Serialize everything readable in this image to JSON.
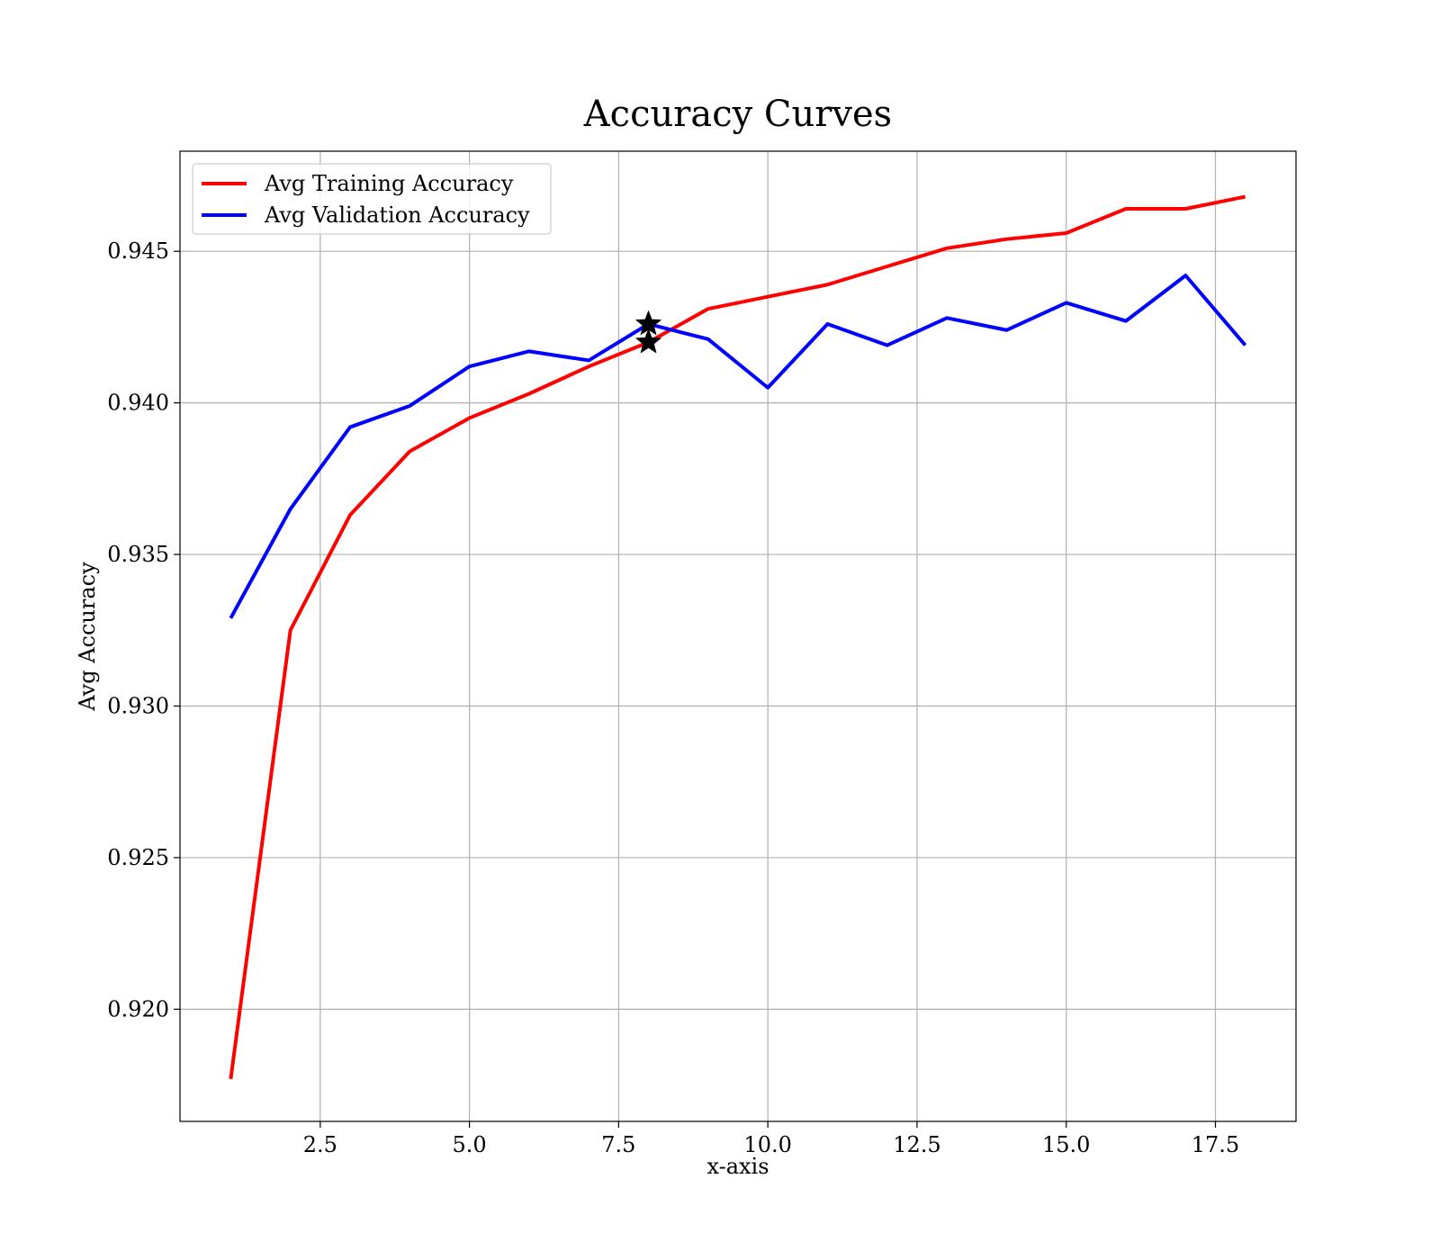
{
  "chart_data": {
    "type": "line",
    "title": "Accuracy Curves",
    "xlabel": "x-axis",
    "ylabel": "Avg Accuracy",
    "xlim": [
      0.15,
      18.85
    ],
    "ylim": [
      0.9163,
      0.9483
    ],
    "xticks": [
      2.5,
      5.0,
      7.5,
      10.0,
      12.5,
      15.0,
      17.5
    ],
    "xtick_labels": [
      "2.5",
      "5.0",
      "7.5",
      "10.0",
      "12.5",
      "15.0",
      "17.5"
    ],
    "yticks": [
      0.92,
      0.925,
      0.93,
      0.935,
      0.94,
      0.945
    ],
    "ytick_labels": [
      "0.920",
      "0.925",
      "0.930",
      "0.935",
      "0.940",
      "0.945"
    ],
    "grid": true,
    "legend_position": "upper-left",
    "x": [
      1,
      2,
      3,
      4,
      5,
      6,
      7,
      8,
      9,
      10,
      11,
      12,
      13,
      14,
      15,
      16,
      17,
      18
    ],
    "series": [
      {
        "name": "Avg Training Accuracy",
        "color": "#ff0000",
        "values": [
          0.9177,
          0.9325,
          0.9363,
          0.9384,
          0.9395,
          0.9403,
          0.9412,
          0.942,
          0.9431,
          0.9435,
          0.9439,
          0.9445,
          0.9451,
          0.9454,
          0.9456,
          0.9464,
          0.9464,
          0.9468
        ]
      },
      {
        "name": "Avg Validation Accuracy",
        "color": "#0000ff",
        "values": [
          0.9329,
          0.9365,
          0.9392,
          0.9399,
          0.9412,
          0.9417,
          0.9414,
          0.9426,
          0.9421,
          0.9405,
          0.9426,
          0.9419,
          0.9428,
          0.9424,
          0.9433,
          0.9427,
          0.9442,
          0.9419
        ]
      }
    ],
    "markers": [
      {
        "series": "Avg Validation Accuracy",
        "x": 8,
        "y": 0.9426,
        "shape": "star",
        "color": "#000000"
      },
      {
        "series": "Avg Training Accuracy",
        "x": 8,
        "y": 0.942,
        "shape": "star",
        "color": "#000000"
      }
    ]
  }
}
